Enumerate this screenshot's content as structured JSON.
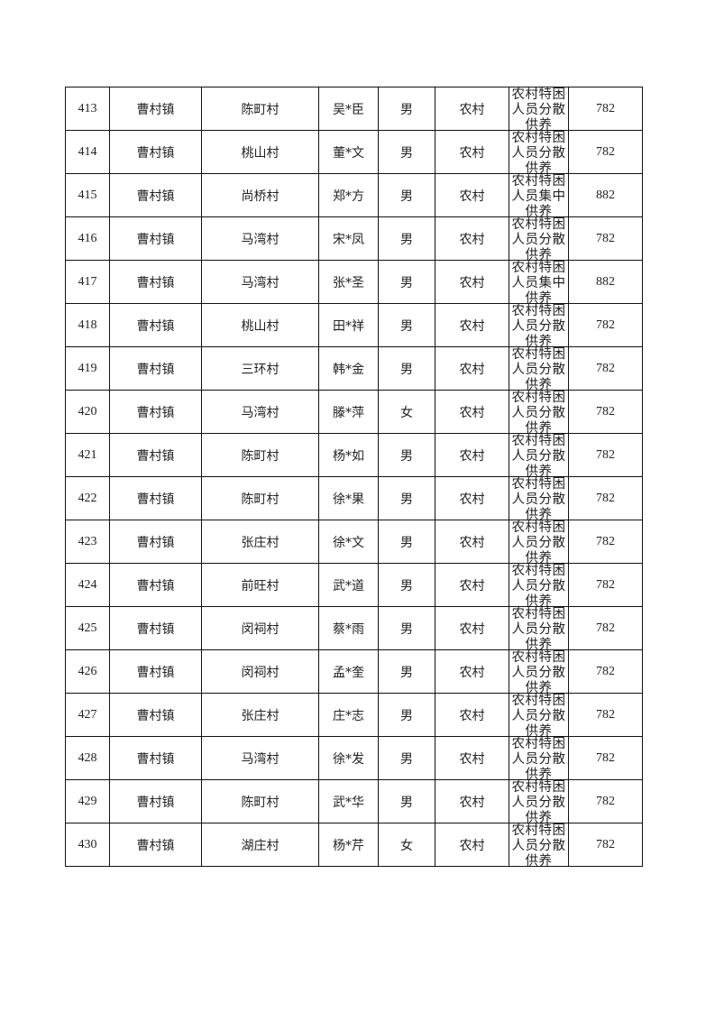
{
  "table": {
    "rows": [
      {
        "no": "413",
        "town": "曹村镇",
        "village": "陈町村",
        "name": "吴*臣",
        "gender": "男",
        "area": "农村",
        "type": "农村特困人员分散供养",
        "amount": "782"
      },
      {
        "no": "414",
        "town": "曹村镇",
        "village": "桃山村",
        "name": "董*文",
        "gender": "男",
        "area": "农村",
        "type": "农村特困人员分散供养",
        "amount": "782"
      },
      {
        "no": "415",
        "town": "曹村镇",
        "village": "尚桥村",
        "name": "郑*方",
        "gender": "男",
        "area": "农村",
        "type": "农村特困人员集中供养",
        "amount": "882"
      },
      {
        "no": "416",
        "town": "曹村镇",
        "village": "马湾村",
        "name": "宋*凤",
        "gender": "男",
        "area": "农村",
        "type": "农村特困人员分散供养",
        "amount": "782"
      },
      {
        "no": "417",
        "town": "曹村镇",
        "village": "马湾村",
        "name": "张*圣",
        "gender": "男",
        "area": "农村",
        "type": "农村特困人员集中供养",
        "amount": "882"
      },
      {
        "no": "418",
        "town": "曹村镇",
        "village": "桃山村",
        "name": "田*祥",
        "gender": "男",
        "area": "农村",
        "type": "农村特困人员分散供养",
        "amount": "782"
      },
      {
        "no": "419",
        "town": "曹村镇",
        "village": "三环村",
        "name": "韩*金",
        "gender": "男",
        "area": "农村",
        "type": "农村特困人员分散供养",
        "amount": "782"
      },
      {
        "no": "420",
        "town": "曹村镇",
        "village": "马湾村",
        "name": "滕*萍",
        "gender": "女",
        "area": "农村",
        "type": "农村特困人员分散供养",
        "amount": "782"
      },
      {
        "no": "421",
        "town": "曹村镇",
        "village": "陈町村",
        "name": "杨*如",
        "gender": "男",
        "area": "农村",
        "type": "农村特困人员分散供养",
        "amount": "782"
      },
      {
        "no": "422",
        "town": "曹村镇",
        "village": "陈町村",
        "name": "徐*果",
        "gender": "男",
        "area": "农村",
        "type": "农村特困人员分散供养",
        "amount": "782"
      },
      {
        "no": "423",
        "town": "曹村镇",
        "village": "张庄村",
        "name": "徐*文",
        "gender": "男",
        "area": "农村",
        "type": "农村特困人员分散供养",
        "amount": "782"
      },
      {
        "no": "424",
        "town": "曹村镇",
        "village": "前旺村",
        "name": "武*道",
        "gender": "男",
        "area": "农村",
        "type": "农村特困人员分散供养",
        "amount": "782"
      },
      {
        "no": "425",
        "town": "曹村镇",
        "village": "闵祠村",
        "name": "蔡*雨",
        "gender": "男",
        "area": "农村",
        "type": "农村特困人员分散供养",
        "amount": "782"
      },
      {
        "no": "426",
        "town": "曹村镇",
        "village": "闵祠村",
        "name": "孟*奎",
        "gender": "男",
        "area": "农村",
        "type": "农村特困人员分散供养",
        "amount": "782"
      },
      {
        "no": "427",
        "town": "曹村镇",
        "village": "张庄村",
        "name": "庄*志",
        "gender": "男",
        "area": "农村",
        "type": "农村特困人员分散供养",
        "amount": "782"
      },
      {
        "no": "428",
        "town": "曹村镇",
        "village": "马湾村",
        "name": "徐*发",
        "gender": "男",
        "area": "农村",
        "type": "农村特困人员分散供养",
        "amount": "782"
      },
      {
        "no": "429",
        "town": "曹村镇",
        "village": "陈町村",
        "name": "武*华",
        "gender": "男",
        "area": "农村",
        "type": "农村特困人员分散供养",
        "amount": "782"
      },
      {
        "no": "430",
        "town": "曹村镇",
        "village": "湖庄村",
        "name": "杨*芹",
        "gender": "女",
        "area": "农村",
        "type": "农村特困人员分散供养",
        "amount": "782"
      }
    ]
  }
}
